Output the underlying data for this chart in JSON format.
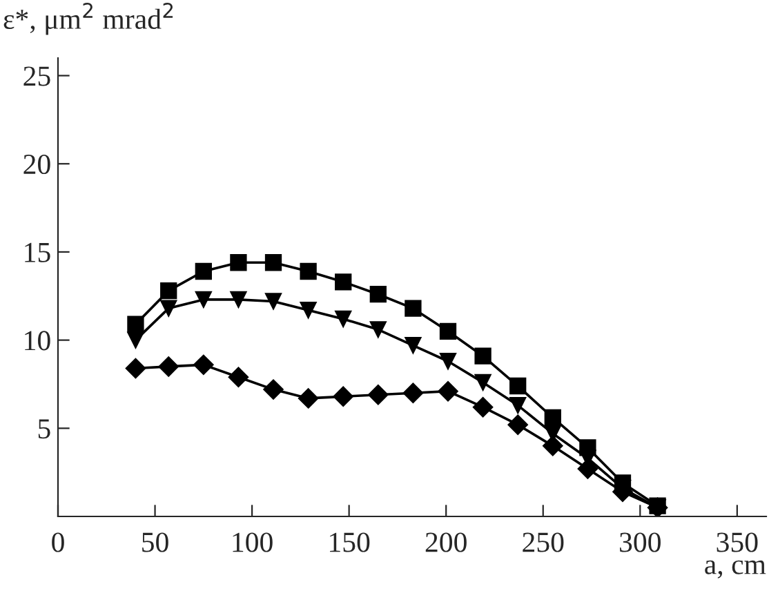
{
  "chart_data": {
    "type": "line",
    "xlabel": "a, cm",
    "ylabel": "ε*, μm$^{2}$ mrad$^{2}$",
    "x": [
      40,
      57,
      75,
      93,
      111,
      129,
      147,
      165,
      183,
      201,
      219,
      237,
      255,
      273,
      291,
      309
    ],
    "series": [
      {
        "color": "#000000",
        "marker": "square",
        "values": [
          10.9,
          12.8,
          13.9,
          14.4,
          14.4,
          13.9,
          13.3,
          12.6,
          11.8,
          10.5,
          9.1,
          7.4,
          5.6,
          3.9,
          1.9,
          0.6
        ]
      },
      {
        "color": "#000000",
        "marker": "triangle",
        "values": [
          10.0,
          11.8,
          12.3,
          12.3,
          12.2,
          11.7,
          11.2,
          10.6,
          9.7,
          8.8,
          7.6,
          6.3,
          4.7,
          3.3,
          1.6,
          0.5
        ]
      },
      {
        "color": "#000000",
        "marker": "diamond",
        "values": [
          8.4,
          8.5,
          8.6,
          7.9,
          7.2,
          6.7,
          6.8,
          6.9,
          7.0,
          7.1,
          6.2,
          5.2,
          4.0,
          2.7,
          1.4,
          0.5
        ]
      }
    ],
    "xlim": [
      0,
      365
    ],
    "ylim": [
      0,
      26
    ],
    "xticks": [
      0,
      50,
      100,
      150,
      200,
      250,
      300,
      350
    ],
    "yticks": [
      5,
      10,
      15,
      20,
      25
    ],
    "grid": false,
    "legend": false,
    "line_style": "solid"
  }
}
